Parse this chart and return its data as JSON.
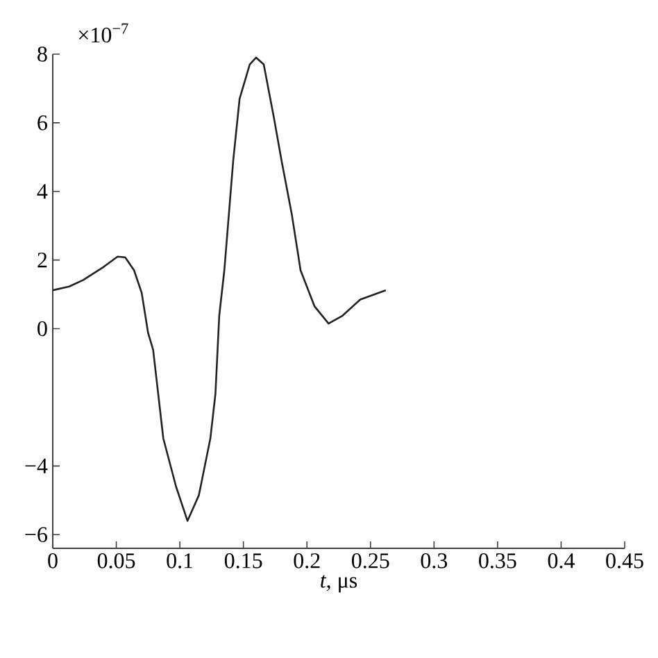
{
  "chart_data": {
    "type": "line",
    "xlabel": "*t*, μs",
    "annotations": [
      "×10$^{−7}$"
    ],
    "x": [
      0,
      0.013,
      0.024,
      0.04,
      0.051,
      0.057,
      0.064,
      0.07,
      0.075,
      0.079,
      0.087,
      0.097,
      0.106,
      0.115,
      0.124,
      0.128,
      0.131,
      0.135,
      0.142,
      0.147,
      0.155,
      0.16,
      0.166,
      0.174,
      0.18,
      0.188,
      0.195,
      0.206,
      0.217,
      0.228,
      0.242,
      0.262
    ],
    "series": [
      {
        "color": "#222222",
        "values": [
          1.12,
          1.23,
          1.42,
          1.8,
          2.1,
          2.08,
          1.7,
          1.04,
          -0.12,
          -0.62,
          -3.2,
          -4.6,
          -5.6,
          -4.85,
          -3.2,
          -1.9,
          0.38,
          1.7,
          4.9,
          6.7,
          7.7,
          7.9,
          7.7,
          6.15,
          4.9,
          3.35,
          1.7,
          0.65,
          0.15,
          0.38,
          0.85,
          1.12
        ]
      }
    ],
    "xlim": [
      0,
      0.45
    ],
    "ylim": [
      -6.4,
      8
    ],
    "xticks": [
      0,
      0.05,
      0.1,
      0.15,
      0.2,
      0.25,
      0.3,
      0.35,
      0.4,
      0.45
    ],
    "yticks": [
      {
        "value": -6,
        "label": "−6"
      },
      {
        "value": -4,
        "label": "−4"
      },
      0,
      2,
      4,
      6,
      8
    ],
    "grid": false,
    "marker": "none",
    "line_style": "solid"
  }
}
